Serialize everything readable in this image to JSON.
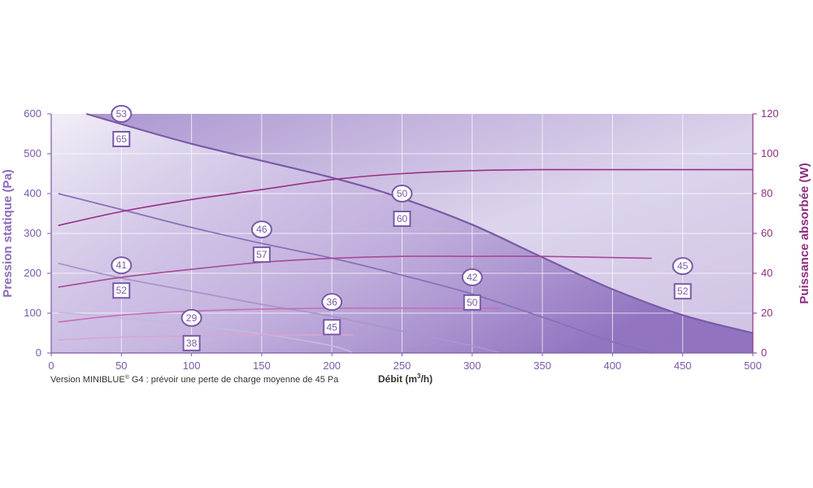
{
  "chart_data": {
    "type": "line",
    "xlabel_main": "Débit (m",
    "xlabel_sup": "3",
    "xlabel_end": "/h)",
    "ylabel_left": "Pression statique (Pa)",
    "ylabel_right": "Puissance absorbée (W)",
    "xlim": [
      0,
      500
    ],
    "ylim_left": [
      0,
      600
    ],
    "ylim_right": [
      0,
      120
    ],
    "x_ticks": [
      0,
      50,
      100,
      150,
      200,
      250,
      300,
      350,
      400,
      450,
      500
    ],
    "y_left_ticks": [
      0,
      100,
      200,
      300,
      400,
      500,
      600
    ],
    "y_right_ticks": [
      0,
      20,
      40,
      60,
      80,
      100,
      120
    ],
    "grid": true,
    "note_prefix": "Version MINIBLUE",
    "note_sup": "®",
    "note_suffix": " G4 : prévoir une perte de charge moyenne de 45 Pa",
    "pressure_curves": [
      {
        "points": [
          [
            25,
            600
          ],
          [
            100,
            525
          ],
          [
            200,
            440
          ],
          [
            250,
            388
          ],
          [
            300,
            322
          ],
          [
            350,
            240
          ],
          [
            400,
            160
          ],
          [
            450,
            95
          ],
          [
            500,
            50
          ]
        ],
        "color": "#7a5aa8"
      },
      {
        "points": [
          [
            5,
            400
          ],
          [
            50,
            360
          ],
          [
            100,
            315
          ],
          [
            150,
            275
          ],
          [
            200,
            238
          ],
          [
            250,
            195
          ],
          [
            300,
            148
          ],
          [
            350,
            90
          ],
          [
            400,
            28
          ],
          [
            428,
            0
          ]
        ],
        "color": "#8a70b8"
      },
      {
        "points": [
          [
            5,
            225
          ],
          [
            50,
            188
          ],
          [
            100,
            155
          ],
          [
            150,
            122
          ],
          [
            200,
            92
          ],
          [
            250,
            55
          ],
          [
            300,
            18
          ],
          [
            320,
            0
          ]
        ],
        "color": "#a896cc"
      },
      {
        "points": [
          [
            5,
            102
          ],
          [
            50,
            88
          ],
          [
            100,
            70
          ],
          [
            150,
            48
          ],
          [
            200,
            18
          ],
          [
            215,
            0
          ]
        ],
        "color": "#c4b8df"
      }
    ],
    "power_curves": [
      {
        "points": [
          [
            5,
            64
          ],
          [
            50,
            71
          ],
          [
            100,
            77
          ],
          [
            150,
            82
          ],
          [
            200,
            87
          ],
          [
            250,
            90
          ],
          [
            300,
            91.5
          ],
          [
            350,
            92
          ],
          [
            500,
            92
          ]
        ],
        "color": "#9a2f86"
      },
      {
        "points": [
          [
            5,
            33
          ],
          [
            50,
            38
          ],
          [
            100,
            42
          ],
          [
            150,
            45.5
          ],
          [
            200,
            47.5
          ],
          [
            250,
            48.5
          ],
          [
            300,
            48.5
          ],
          [
            350,
            48.5
          ],
          [
            428,
            47.5
          ]
        ],
        "color": "#a8489a"
      },
      {
        "points": [
          [
            5,
            15.5
          ],
          [
            50,
            19
          ],
          [
            100,
            21
          ],
          [
            150,
            22
          ],
          [
            200,
            22.5
          ],
          [
            250,
            22.5
          ],
          [
            320,
            22.5
          ]
        ],
        "color": "#c76db8"
      },
      {
        "points": [
          [
            5,
            6.5
          ],
          [
            50,
            8
          ],
          [
            100,
            8.5
          ],
          [
            150,
            9
          ],
          [
            215,
            9
          ]
        ],
        "color": "#d9a4d0"
      }
    ],
    "annotations": [
      {
        "x": 50,
        "y_left": 600,
        "circle": "53",
        "square": "65"
      },
      {
        "x": 250,
        "y_left": 400,
        "circle": "50",
        "square": "60"
      },
      {
        "x": 150,
        "y_left": 310,
        "circle": "46",
        "square": "57"
      },
      {
        "x": 50,
        "y_left": 220,
        "circle": "41",
        "square": "52"
      },
      {
        "x": 300,
        "y_left": 190,
        "circle": "42",
        "square": "50"
      },
      {
        "x": 200,
        "y_left": 128,
        "circle": "36",
        "square": "45"
      },
      {
        "x": 100,
        "y_left": 88,
        "circle": "29",
        "square": "38"
      },
      {
        "x": 450,
        "y_left": 218,
        "circle": "45",
        "square": "52"
      }
    ],
    "colors": {
      "axis_left": "#7a5aa8",
      "axis_right": "#8e2f7e",
      "fill_dark": "#8f72bf",
      "fill_light": "#ffffff",
      "grid": "#ffffff"
    }
  }
}
